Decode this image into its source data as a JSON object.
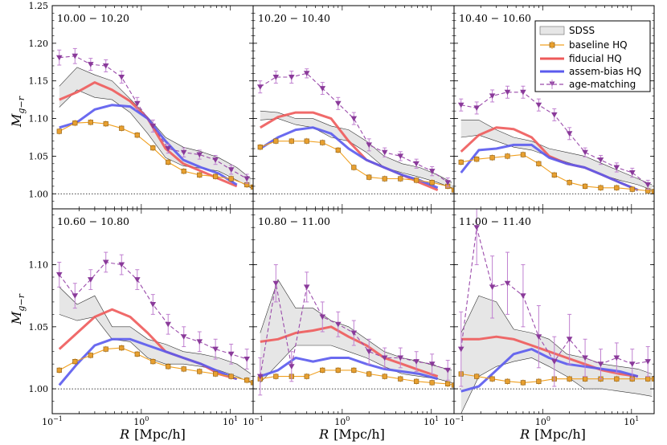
{
  "chart_data": {
    "type": "line",
    "ylabel_text": "M",
    "ylabel_sub": "g−r",
    "xlabel_main": "R",
    "xlabel_unit": "[Mpc/h]",
    "xlim": [
      0.1,
      18
    ],
    "x_ticks": [
      {
        "v": 0.1,
        "base": "10",
        "exp": "−1"
      },
      {
        "v": 1,
        "base": "10",
        "exp": "0"
      },
      {
        "v": 10,
        "base": "10",
        "exp": "1"
      }
    ],
    "rows": [
      {
        "ylim": [
          0.98,
          1.25
        ],
        "yticks": [
          "1.00",
          "1.05",
          "1.10",
          "1.15",
          "1.20",
          "1.25"
        ],
        "ytick_values": [
          1.0,
          1.05,
          1.1,
          1.15,
          1.2,
          1.25
        ]
      },
      {
        "ylim": [
          0.98,
          1.145
        ],
        "yticks": [
          "1.00",
          "1.05",
          "1.10"
        ],
        "ytick_values": [
          1.0,
          1.05,
          1.1
        ]
      }
    ],
    "legend": [
      {
        "key": "sdss",
        "label": "SDSS"
      },
      {
        "key": "baseline",
        "label": "baseline HQ"
      },
      {
        "key": "fiducial",
        "label": "fiducial HQ"
      },
      {
        "key": "assem",
        "label": "assem-bias HQ"
      },
      {
        "key": "age",
        "label": "age-matching"
      }
    ],
    "colors": {
      "sdss_fill": "#e6e6e6",
      "sdss_edge": "#333333",
      "baseline": "#f0a020",
      "baseline_face": "#e8a030",
      "fiducial": "#ee5a5a",
      "assem": "#5a5aee",
      "age": "#9a4aaa",
      "age_err": "#c080d0"
    },
    "x_base": [
      0.12,
      0.19,
      0.3,
      0.47,
      0.75,
      1.18,
      1.87,
      2.96,
      4.7,
      7.4,
      11.8,
      17.0
    ],
    "x_baseline": [
      0.12,
      0.18,
      0.27,
      0.4,
      0.6,
      0.9,
      1.35,
      2.0,
      3.0,
      4.5,
      6.8,
      10.2,
      15.3,
      18.0
    ],
    "panels": [
      {
        "title": "10.00 − 10.20",
        "sdss_upper": [
          1.143,
          1.168,
          1.158,
          1.15,
          1.126,
          1.102,
          1.075,
          1.062,
          1.056,
          1.048,
          1.035,
          1.02
        ],
        "sdss_lower": [
          1.115,
          1.138,
          1.128,
          1.125,
          1.108,
          1.08,
          1.048,
          1.037,
          1.034,
          1.03,
          1.018,
          1.008
        ],
        "baseline": [
          1.083,
          1.094,
          1.095,
          1.093,
          1.087,
          1.078,
          1.061,
          1.042,
          1.03,
          1.025,
          1.023,
          1.02,
          1.012,
          1.009
        ],
        "fiducial": [
          1.125,
          1.135,
          1.148,
          1.138,
          1.123,
          1.1,
          1.06,
          1.04,
          1.03,
          1.02,
          1.01
        ],
        "assem": [
          1.088,
          1.095,
          1.112,
          1.118,
          1.116,
          1.1,
          1.07,
          1.045,
          1.035,
          1.027,
          1.012
        ],
        "age": [
          1.181,
          1.183,
          1.172,
          1.17,
          1.155,
          1.12,
          1.09,
          1.06,
          1.055,
          1.052,
          1.045,
          1.032,
          1.02
        ],
        "age_err": [
          0.01,
          0.01,
          0.008,
          0.008,
          0.008,
          0.008,
          0.008,
          0.006,
          0.006,
          0.006,
          0.006,
          0.006,
          0.006
        ]
      },
      {
        "title": "10.20 − 10.40",
        "sdss_upper": [
          1.11,
          1.108,
          1.1,
          1.1,
          1.09,
          1.085,
          1.07,
          1.05,
          1.04,
          1.035,
          1.025,
          1.015
        ],
        "sdss_lower": [
          1.098,
          1.1,
          1.092,
          1.088,
          1.075,
          1.07,
          1.055,
          1.035,
          1.028,
          1.022,
          1.015,
          1.008
        ],
        "baseline": [
          1.062,
          1.07,
          1.07,
          1.07,
          1.068,
          1.058,
          1.035,
          1.022,
          1.02,
          1.02,
          1.018,
          1.015,
          1.01,
          1.005
        ],
        "fiducial": [
          1.088,
          1.102,
          1.108,
          1.108,
          1.1,
          1.07,
          1.045,
          1.035,
          1.025,
          1.015,
          1.005
        ],
        "assem": [
          1.06,
          1.075,
          1.085,
          1.088,
          1.08,
          1.06,
          1.045,
          1.035,
          1.025,
          1.018,
          1.008
        ],
        "age": [
          1.142,
          1.155,
          1.155,
          1.16,
          1.14,
          1.12,
          1.1,
          1.065,
          1.055,
          1.05,
          1.04,
          1.03,
          1.015
        ],
        "age_err": [
          0.008,
          0.008,
          0.008,
          0.006,
          0.008,
          0.008,
          0.008,
          0.008,
          0.006,
          0.006,
          0.006,
          0.006,
          0.006
        ]
      },
      {
        "title": "10.40 − 10.60",
        "sdss_upper": [
          1.098,
          1.098,
          1.085,
          1.075,
          1.07,
          1.06,
          1.055,
          1.05,
          1.04,
          1.03,
          1.02,
          1.012
        ],
        "sdss_lower": [
          1.075,
          1.078,
          1.07,
          1.062,
          1.058,
          1.05,
          1.042,
          1.035,
          1.025,
          1.018,
          1.012,
          1.005
        ],
        "baseline": [
          1.042,
          1.046,
          1.048,
          1.05,
          1.052,
          1.04,
          1.025,
          1.015,
          1.01,
          1.008,
          1.008,
          1.006,
          1.004,
          1.003
        ],
        "fiducial": [
          1.056,
          1.078,
          1.088,
          1.086,
          1.075,
          1.05,
          1.04,
          1.035,
          1.025,
          1.015,
          1.005
        ],
        "assem": [
          1.028,
          1.058,
          1.06,
          1.065,
          1.065,
          1.048,
          1.04,
          1.035,
          1.025,
          1.015,
          1.005
        ],
        "age": [
          1.118,
          1.114,
          1.13,
          1.135,
          1.135,
          1.118,
          1.105,
          1.08,
          1.055,
          1.045,
          1.035,
          1.028,
          1.012
        ],
        "age_err": [
          0.008,
          0.008,
          0.008,
          0.008,
          0.008,
          0.008,
          0.008,
          0.008,
          0.006,
          0.006,
          0.006,
          0.006,
          0.006
        ]
      },
      {
        "title": "10.60 − 10.80",
        "sdss_upper": [
          1.082,
          1.068,
          1.075,
          1.05,
          1.05,
          1.04,
          1.036,
          1.03,
          1.028,
          1.025,
          1.02,
          1.012
        ],
        "sdss_lower": [
          1.06,
          1.055,
          1.058,
          1.04,
          1.038,
          1.025,
          1.02,
          1.02,
          1.018,
          1.015,
          1.01,
          1.005
        ],
        "baseline": [
          1.015,
          1.022,
          1.027,
          1.032,
          1.033,
          1.028,
          1.022,
          1.018,
          1.016,
          1.014,
          1.012,
          1.01,
          1.007,
          1.005
        ],
        "fiducial": [
          1.032,
          1.045,
          1.058,
          1.064,
          1.058,
          1.045,
          1.03,
          1.025,
          1.02,
          1.012,
          1.008
        ],
        "assem": [
          1.003,
          1.02,
          1.035,
          1.04,
          1.04,
          1.035,
          1.03,
          1.025,
          1.02,
          1.014,
          1.008
        ],
        "age": [
          1.092,
          1.075,
          1.088,
          1.102,
          1.1,
          1.088,
          1.068,
          1.052,
          1.042,
          1.038,
          1.032,
          1.028,
          1.024
        ],
        "age_err": [
          0.01,
          0.01,
          0.008,
          0.008,
          0.008,
          0.008,
          0.008,
          0.008,
          0.008,
          0.008,
          0.008,
          0.008,
          0.008
        ]
      },
      {
        "title": "10.80 − 11.00",
        "sdss_upper": [
          1.045,
          1.088,
          1.065,
          1.065,
          1.055,
          1.05,
          1.04,
          1.03,
          1.025,
          1.022,
          1.018,
          1.015
        ],
        "sdss_lower": [
          1.005,
          1.02,
          1.035,
          1.035,
          1.035,
          1.03,
          1.025,
          1.018,
          1.012,
          1.01,
          1.008,
          1.005
        ],
        "baseline": [
          1.008,
          1.01,
          1.01,
          1.01,
          1.015,
          1.015,
          1.015,
          1.012,
          1.01,
          1.008,
          1.006,
          1.005,
          1.004,
          1.003
        ],
        "fiducial": [
          1.038,
          1.04,
          1.045,
          1.047,
          1.05,
          1.042,
          1.035,
          1.025,
          1.02,
          1.015,
          1.01
        ],
        "assem": [
          1.01,
          1.015,
          1.025,
          1.022,
          1.025,
          1.025,
          1.02,
          1.016,
          1.014,
          1.012,
          1.008
        ],
        "age": [
          1.01,
          1.085,
          1.018,
          1.082,
          1.058,
          1.052,
          1.045,
          1.03,
          1.025,
          1.025,
          1.022,
          1.02,
          1.015
        ],
        "age_err": [
          0.015,
          0.015,
          0.012,
          0.012,
          0.012,
          0.01,
          0.01,
          0.01,
          0.008,
          0.008,
          0.008,
          0.008,
          0.008
        ]
      },
      {
        "title": "11.00 − 11.40",
        "sdss_upper": [
          1.045,
          1.075,
          1.07,
          1.048,
          1.045,
          1.04,
          1.028,
          1.025,
          1.02,
          1.018,
          1.016,
          1.012
        ],
        "sdss_lower": [
          0.98,
          1.01,
          1.018,
          1.022,
          1.025,
          1.018,
          1.01,
          1.0,
          1.0,
          0.998,
          0.996,
          0.994
        ],
        "baseline": [
          1.012,
          1.01,
          1.008,
          1.006,
          1.005,
          1.006,
          1.008,
          1.008,
          1.008,
          1.008,
          1.008,
          1.008,
          1.008,
          1.008
        ],
        "fiducial": [
          1.04,
          1.04,
          1.042,
          1.04,
          1.035,
          1.03,
          1.025,
          1.02,
          1.015,
          1.012,
          1.01
        ],
        "assem": [
          0.998,
          1.002,
          1.015,
          1.028,
          1.032,
          1.025,
          1.02,
          1.018,
          1.016,
          1.014,
          1.01
        ],
        "age": [
          1.032,
          1.13,
          1.082,
          1.085,
          1.075,
          1.042,
          1.022,
          1.04,
          1.025,
          1.02,
          1.025,
          1.02,
          1.022
        ],
        "age_err": [
          0.03,
          0.03,
          0.025,
          0.025,
          0.025,
          0.025,
          0.02,
          0.02,
          0.015,
          0.012,
          0.012,
          0.012,
          0.012
        ]
      }
    ]
  }
}
